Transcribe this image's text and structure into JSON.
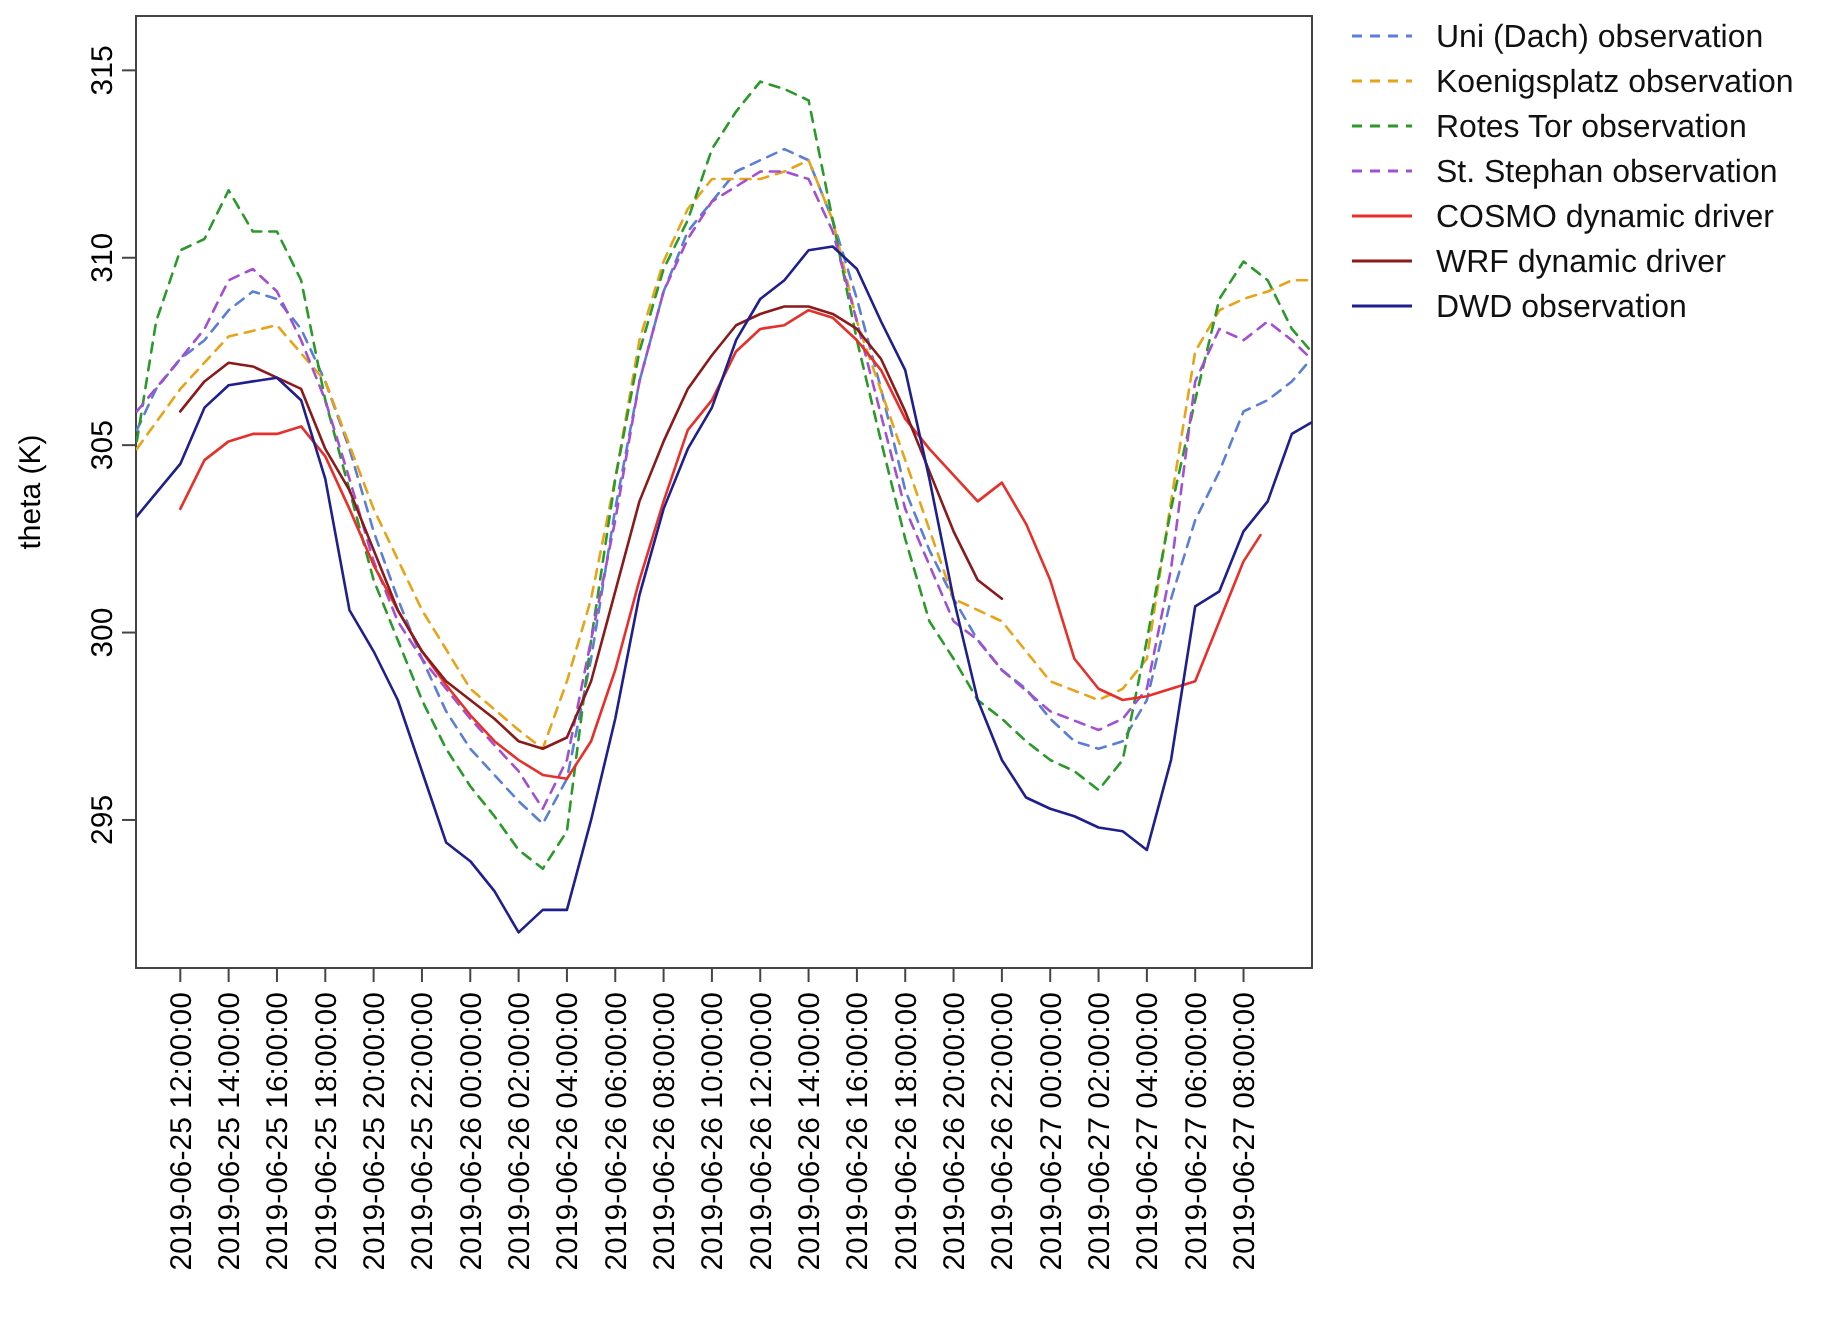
{
  "chart_data": {
    "type": "line",
    "ylabel": "theta (K)",
    "xlim": [
      "2019-06-25T10:10",
      "2019-06-27T10:50"
    ],
    "ylim": [
      291.05,
      316.45
    ],
    "yticks": [
      295,
      300,
      305,
      310,
      315
    ],
    "xticks": [
      {
        "value": "2019-06-25T12:00",
        "label": "2019-06-25 12:00:00"
      },
      {
        "value": "2019-06-25T14:00",
        "label": "2019-06-25 14:00:00"
      },
      {
        "value": "2019-06-25T16:00",
        "label": "2019-06-25 16:00:00"
      },
      {
        "value": "2019-06-25T18:00",
        "label": "2019-06-25 18:00:00"
      },
      {
        "value": "2019-06-25T20:00",
        "label": "2019-06-25 20:00:00"
      },
      {
        "value": "2019-06-25T22:00",
        "label": "2019-06-25 22:00:00"
      },
      {
        "value": "2019-06-26T00:00",
        "label": "2019-06-26 00:00:00"
      },
      {
        "value": "2019-06-26T02:00",
        "label": "2019-06-26 02:00:00"
      },
      {
        "value": "2019-06-26T04:00",
        "label": "2019-06-26 04:00:00"
      },
      {
        "value": "2019-06-26T06:00",
        "label": "2019-06-26 06:00:00"
      },
      {
        "value": "2019-06-26T08:00",
        "label": "2019-06-26 08:00:00"
      },
      {
        "value": "2019-06-26T10:00",
        "label": "2019-06-26 10:00:00"
      },
      {
        "value": "2019-06-26T12:00",
        "label": "2019-06-26 12:00:00"
      },
      {
        "value": "2019-06-26T14:00",
        "label": "2019-06-26 14:00:00"
      },
      {
        "value": "2019-06-26T16:00",
        "label": "2019-06-26 16:00:00"
      },
      {
        "value": "2019-06-26T18:00",
        "label": "2019-06-26 18:00:00"
      },
      {
        "value": "2019-06-26T20:00",
        "label": "2019-06-26 20:00:00"
      },
      {
        "value": "2019-06-26T22:00",
        "label": "2019-06-26 22:00:00"
      },
      {
        "value": "2019-06-27T00:00",
        "label": "2019-06-27 00:00:00"
      },
      {
        "value": "2019-06-27T02:00",
        "label": "2019-06-27 02:00:00"
      },
      {
        "value": "2019-06-27T04:00",
        "label": "2019-06-27 04:00:00"
      },
      {
        "value": "2019-06-27T06:00",
        "label": "2019-06-27 06:00:00"
      },
      {
        "value": "2019-06-27T08:00",
        "label": "2019-06-27 08:00:00"
      }
    ],
    "grid": false,
    "legend": "top right",
    "marker": "none",
    "series": [
      {
        "name": "Uni (Dach) observation",
        "color": "#5b7fd6",
        "line_style": "dashed",
        "x": [
          "2019-06-25T10:12",
          "2019-06-25T11:00",
          "2019-06-25T12:00",
          "2019-06-25T13:00",
          "2019-06-25T14:00",
          "2019-06-25T15:00",
          "2019-06-25T16:00",
          "2019-06-25T17:00",
          "2019-06-25T18:00",
          "2019-06-25T19:00",
          "2019-06-25T20:00",
          "2019-06-25T21:00",
          "2019-06-25T22:00",
          "2019-06-25T23:00",
          "2019-06-26T00:00",
          "2019-06-26T01:00",
          "2019-06-26T02:00",
          "2019-06-26T03:00",
          "2019-06-26T04:00",
          "2019-06-26T05:00",
          "2019-06-26T06:00",
          "2019-06-26T07:00",
          "2019-06-26T08:00",
          "2019-06-26T09:00",
          "2019-06-26T10:00",
          "2019-06-26T11:00",
          "2019-06-26T12:00",
          "2019-06-26T13:00",
          "2019-06-26T14:00",
          "2019-06-26T15:00",
          "2019-06-26T16:00",
          "2019-06-26T17:00",
          "2019-06-26T18:00",
          "2019-06-26T19:00",
          "2019-06-26T20:00",
          "2019-06-26T21:00",
          "2019-06-26T22:00",
          "2019-06-26T23:00",
          "2019-06-27T00:00",
          "2019-06-27T01:00",
          "2019-06-27T02:00",
          "2019-06-27T03:00",
          "2019-06-27T04:00",
          "2019-06-27T05:00",
          "2019-06-27T06:00",
          "2019-06-27T07:00",
          "2019-06-27T08:00",
          "2019-06-27T09:00",
          "2019-06-27T10:00",
          "2019-06-27T10:48"
        ],
        "values": [
          305.4,
          306.5,
          307.3,
          307.8,
          308.6,
          309.1,
          308.9,
          308.1,
          306.7,
          304.9,
          302.7,
          300.9,
          299.3,
          297.9,
          296.9,
          296.2,
          295.5,
          294.9,
          296.1,
          299.3,
          303.3,
          306.7,
          309.1,
          310.7,
          311.5,
          312.3,
          312.6,
          312.9,
          312.6,
          311.0,
          308.9,
          306.5,
          303.8,
          302.2,
          300.9,
          299.8,
          299.0,
          298.5,
          297.7,
          297.1,
          296.9,
          297.1,
          298.2,
          300.9,
          303.0,
          304.3,
          305.9,
          306.2,
          306.7,
          307.3
        ]
      },
      {
        "name": "Koenigsplatz observation",
        "color": "#e8a317",
        "line_style": "dashed",
        "x": [
          "2019-06-25T10:12",
          "2019-06-25T12:00",
          "2019-06-25T14:00",
          "2019-06-25T16:00",
          "2019-06-25T18:00",
          "2019-06-25T20:00",
          "2019-06-25T22:00",
          "2019-06-26T00:00",
          "2019-06-26T02:00",
          "2019-06-26T03:00",
          "2019-06-26T04:00",
          "2019-06-26T05:00",
          "2019-06-26T06:00",
          "2019-06-26T07:00",
          "2019-06-26T08:00",
          "2019-06-26T09:00",
          "2019-06-26T10:00",
          "2019-06-26T12:00",
          "2019-06-26T13:00",
          "2019-06-26T14:00",
          "2019-06-26T15:00",
          "2019-06-26T16:00",
          "2019-06-26T18:00",
          "2019-06-26T20:00",
          "2019-06-26T22:00",
          "2019-06-26T23:00",
          "2019-06-27T00:00",
          "2019-06-27T02:00",
          "2019-06-27T03:00",
          "2019-06-27T04:00",
          "2019-06-27T05:00",
          "2019-06-27T06:00",
          "2019-06-27T07:00",
          "2019-06-27T08:00",
          "2019-06-27T09:00",
          "2019-06-27T10:00",
          "2019-06-27T10:48"
        ],
        "values": [
          304.9,
          306.5,
          307.9,
          308.2,
          306.7,
          303.3,
          300.6,
          298.5,
          297.4,
          296.9,
          298.7,
          300.9,
          304.1,
          307.8,
          309.9,
          311.3,
          312.1,
          312.1,
          312.3,
          312.6,
          311.0,
          308.3,
          304.6,
          300.9,
          300.3,
          299.5,
          298.7,
          298.2,
          298.5,
          299.3,
          303.5,
          307.5,
          308.6,
          308.9,
          309.1,
          309.4,
          309.4
        ]
      },
      {
        "name": "Rotes Tor observation",
        "color": "#2a9a2a",
        "line_style": "dashed",
        "x": [
          "2019-06-25T10:12",
          "2019-06-25T11:00",
          "2019-06-25T12:00",
          "2019-06-25T13:00",
          "2019-06-25T14:00",
          "2019-06-25T15:00",
          "2019-06-25T16:00",
          "2019-06-25T17:00",
          "2019-06-25T18:00",
          "2019-06-25T19:00",
          "2019-06-25T20:00",
          "2019-06-25T21:00",
          "2019-06-25T22:00",
          "2019-06-25T23:00",
          "2019-06-26T00:00",
          "2019-06-26T01:00",
          "2019-06-26T02:00",
          "2019-06-26T03:00",
          "2019-06-26T04:00",
          "2019-06-26T05:00",
          "2019-06-26T06:00",
          "2019-06-26T07:00",
          "2019-06-26T08:00",
          "2019-06-26T09:00",
          "2019-06-26T10:00",
          "2019-06-26T11:00",
          "2019-06-26T12:00",
          "2019-06-26T13:00",
          "2019-06-26T14:00",
          "2019-06-26T15:00",
          "2019-06-26T16:00",
          "2019-06-26T17:00",
          "2019-06-26T18:00",
          "2019-06-26T19:00",
          "2019-06-26T20:00",
          "2019-06-26T21:00",
          "2019-06-26T22:00",
          "2019-06-26T23:00",
          "2019-06-27T00:00",
          "2019-06-27T01:00",
          "2019-06-27T02:00",
          "2019-06-27T03:00",
          "2019-06-27T04:00",
          "2019-06-27T05:00",
          "2019-06-27T06:00",
          "2019-06-27T07:00",
          "2019-06-27T08:00",
          "2019-06-27T09:00",
          "2019-06-27T10:00",
          "2019-06-27T10:48"
        ],
        "values": [
          305.1,
          308.3,
          310.2,
          310.5,
          311.8,
          310.7,
          310.7,
          309.4,
          306.2,
          303.8,
          301.4,
          299.8,
          298.2,
          296.9,
          295.9,
          295.1,
          294.2,
          293.7,
          294.7,
          299.8,
          304.1,
          307.5,
          309.7,
          311.0,
          312.9,
          313.9,
          314.7,
          314.5,
          314.2,
          311.0,
          307.8,
          305.1,
          302.5,
          300.3,
          299.3,
          298.2,
          297.7,
          297.1,
          296.6,
          296.3,
          295.8,
          296.6,
          299.8,
          303.3,
          306.2,
          308.9,
          309.9,
          309.4,
          308.1,
          307.5
        ]
      },
      {
        "name": "St. Stephan observation",
        "color": "#a34fd1",
        "line_style": "dashed",
        "x": [
          "2019-06-25T10:12",
          "2019-06-25T12:00",
          "2019-06-25T13:00",
          "2019-06-25T14:00",
          "2019-06-25T15:00",
          "2019-06-25T16:00",
          "2019-06-25T17:00",
          "2019-06-25T18:00",
          "2019-06-25T19:00",
          "2019-06-25T20:00",
          "2019-06-25T21:00",
          "2019-06-25T22:00",
          "2019-06-26T00:00",
          "2019-06-26T02:00",
          "2019-06-26T03:00",
          "2019-06-26T04:00",
          "2019-06-26T05:00",
          "2019-06-26T06:00",
          "2019-06-26T07:00",
          "2019-06-26T08:00",
          "2019-06-26T09:00",
          "2019-06-26T10:00",
          "2019-06-26T12:00",
          "2019-06-26T13:00",
          "2019-06-26T14:00",
          "2019-06-26T15:00",
          "2019-06-26T16:00",
          "2019-06-26T18:00",
          "2019-06-26T20:00",
          "2019-06-26T21:00",
          "2019-06-26T22:00",
          "2019-06-27T00:00",
          "2019-06-27T02:00",
          "2019-06-27T03:00",
          "2019-06-27T04:00",
          "2019-06-27T05:00",
          "2019-06-27T06:00",
          "2019-06-27T07:00",
          "2019-06-27T08:00",
          "2019-06-27T09:00",
          "2019-06-27T10:00",
          "2019-06-27T10:48"
        ],
        "values": [
          305.9,
          307.3,
          308.1,
          309.4,
          309.7,
          309.1,
          307.8,
          306.2,
          304.1,
          301.9,
          300.3,
          299.3,
          297.7,
          296.3,
          295.3,
          296.6,
          299.8,
          303.0,
          306.7,
          309.1,
          310.5,
          311.5,
          312.3,
          312.3,
          312.1,
          310.7,
          308.3,
          303.3,
          300.3,
          299.8,
          299.0,
          297.9,
          297.4,
          297.7,
          298.5,
          301.7,
          306.7,
          308.1,
          307.8,
          308.3,
          307.8,
          307.3
        ]
      },
      {
        "name": "COSMO dynamic driver",
        "color": "#e8302a",
        "line_style": "solid",
        "x": [
          "2019-06-25T12:00",
          "2019-06-25T13:00",
          "2019-06-25T14:00",
          "2019-06-25T15:00",
          "2019-06-25T16:00",
          "2019-06-25T17:00",
          "2019-06-25T18:00",
          "2019-06-25T19:00",
          "2019-06-25T20:00",
          "2019-06-25T21:00",
          "2019-06-25T22:00",
          "2019-06-25T23:00",
          "2019-06-26T00:00",
          "2019-06-26T01:00",
          "2019-06-26T02:00",
          "2019-06-26T03:00",
          "2019-06-26T04:00",
          "2019-06-26T05:00",
          "2019-06-26T06:00",
          "2019-06-26T07:00",
          "2019-06-26T08:00",
          "2019-06-26T09:00",
          "2019-06-26T10:00",
          "2019-06-26T11:00",
          "2019-06-26T12:00",
          "2019-06-26T13:00",
          "2019-06-26T14:00",
          "2019-06-26T15:00",
          "2019-06-26T16:00",
          "2019-06-26T17:00",
          "2019-06-26T18:00",
          "2019-06-26T19:00",
          "2019-06-26T20:00",
          "2019-06-26T21:00",
          "2019-06-26T22:00",
          "2019-06-26T23:00",
          "2019-06-27T00:00",
          "2019-06-27T01:00",
          "2019-06-27T02:00",
          "2019-06-27T03:00",
          "2019-06-27T04:00",
          "2019-06-27T05:00",
          "2019-06-27T06:00",
          "2019-06-27T07:00",
          "2019-06-27T08:00",
          "2019-06-27T08:42"
        ],
        "values": [
          303.3,
          304.6,
          305.1,
          305.3,
          305.3,
          305.5,
          304.7,
          303.3,
          301.8,
          300.6,
          299.5,
          298.6,
          297.8,
          297.1,
          296.6,
          296.2,
          296.1,
          297.1,
          299.0,
          301.4,
          303.5,
          305.4,
          306.2,
          307.5,
          308.1,
          308.2,
          308.6,
          308.4,
          307.8,
          307.0,
          305.7,
          304.9,
          304.2,
          303.5,
          304.0,
          302.9,
          301.4,
          299.3,
          298.5,
          298.2,
          298.3,
          298.5,
          298.7,
          300.3,
          301.9,
          302.6
        ]
      },
      {
        "name": "WRF dynamic driver",
        "color": "#8b1a1a",
        "line_style": "solid",
        "x": [
          "2019-06-25T12:00",
          "2019-06-25T13:00",
          "2019-06-25T14:00",
          "2019-06-25T15:00",
          "2019-06-25T16:00",
          "2019-06-25T17:00",
          "2019-06-25T18:00",
          "2019-06-25T19:00",
          "2019-06-25T20:00",
          "2019-06-25T21:00",
          "2019-06-25T22:00",
          "2019-06-25T23:00",
          "2019-06-26T00:00",
          "2019-06-26T01:00",
          "2019-06-26T02:00",
          "2019-06-26T03:00",
          "2019-06-26T04:00",
          "2019-06-26T05:00",
          "2019-06-26T06:00",
          "2019-06-26T07:00",
          "2019-06-26T08:00",
          "2019-06-26T09:00",
          "2019-06-26T10:00",
          "2019-06-26T11:00",
          "2019-06-26T12:00",
          "2019-06-26T13:00",
          "2019-06-26T14:00",
          "2019-06-26T15:00",
          "2019-06-26T16:00",
          "2019-06-26T17:00",
          "2019-06-26T18:00",
          "2019-06-26T19:00",
          "2019-06-26T20:00",
          "2019-06-26T21:00",
          "2019-06-26T22:00"
        ],
        "values": [
          305.9,
          306.7,
          307.2,
          307.1,
          306.8,
          306.5,
          304.9,
          303.8,
          302.2,
          300.6,
          299.5,
          298.7,
          298.2,
          297.7,
          297.1,
          296.9,
          297.2,
          298.7,
          301.1,
          303.5,
          305.1,
          306.5,
          307.4,
          308.2,
          308.5,
          308.7,
          308.7,
          308.5,
          308.1,
          307.3,
          305.9,
          304.3,
          302.7,
          301.4,
          300.9
        ]
      },
      {
        "name": "DWD observation",
        "color": "#1f1f8f",
        "line_style": "solid",
        "x": [
          "2019-06-25T10:12",
          "2019-06-25T12:00",
          "2019-06-25T13:00",
          "2019-06-25T14:00",
          "2019-06-25T16:00",
          "2019-06-25T17:00",
          "2019-06-25T18:00",
          "2019-06-25T19:00",
          "2019-06-25T20:00",
          "2019-06-25T21:00",
          "2019-06-25T22:00",
          "2019-06-25T23:00",
          "2019-06-26T00:00",
          "2019-06-26T01:00",
          "2019-06-26T02:00",
          "2019-06-26T03:00",
          "2019-06-26T04:00",
          "2019-06-26T05:00",
          "2019-06-26T06:00",
          "2019-06-26T07:00",
          "2019-06-26T08:00",
          "2019-06-26T09:00",
          "2019-06-26T10:00",
          "2019-06-26T11:00",
          "2019-06-26T12:00",
          "2019-06-26T13:00",
          "2019-06-26T14:00",
          "2019-06-26T15:00",
          "2019-06-26T16:00",
          "2019-06-26T17:00",
          "2019-06-26T18:00",
          "2019-06-26T19:00",
          "2019-06-26T20:00",
          "2019-06-26T21:00",
          "2019-06-26T22:00",
          "2019-06-26T23:00",
          "2019-06-27T00:00",
          "2019-06-27T01:00",
          "2019-06-27T02:00",
          "2019-06-27T03:00",
          "2019-06-27T04:00",
          "2019-06-27T05:00",
          "2019-06-27T06:00",
          "2019-06-27T07:00",
          "2019-06-27T08:00",
          "2019-06-27T09:00",
          "2019-06-27T10:00",
          "2019-06-27T10:48"
        ],
        "values": [
          303.1,
          304.5,
          306.0,
          306.6,
          306.8,
          306.2,
          304.1,
          300.6,
          299.5,
          298.2,
          296.3,
          294.4,
          293.9,
          293.1,
          292.0,
          292.6,
          292.6,
          295.0,
          297.7,
          301.0,
          303.3,
          304.9,
          306.0,
          307.8,
          308.9,
          309.4,
          310.2,
          310.3,
          309.7,
          308.3,
          307.0,
          304.1,
          300.9,
          298.2,
          296.6,
          295.6,
          295.3,
          295.1,
          294.8,
          294.7,
          294.2,
          296.6,
          300.7,
          301.1,
          302.7,
          303.5,
          305.3,
          305.6
        ]
      }
    ]
  }
}
